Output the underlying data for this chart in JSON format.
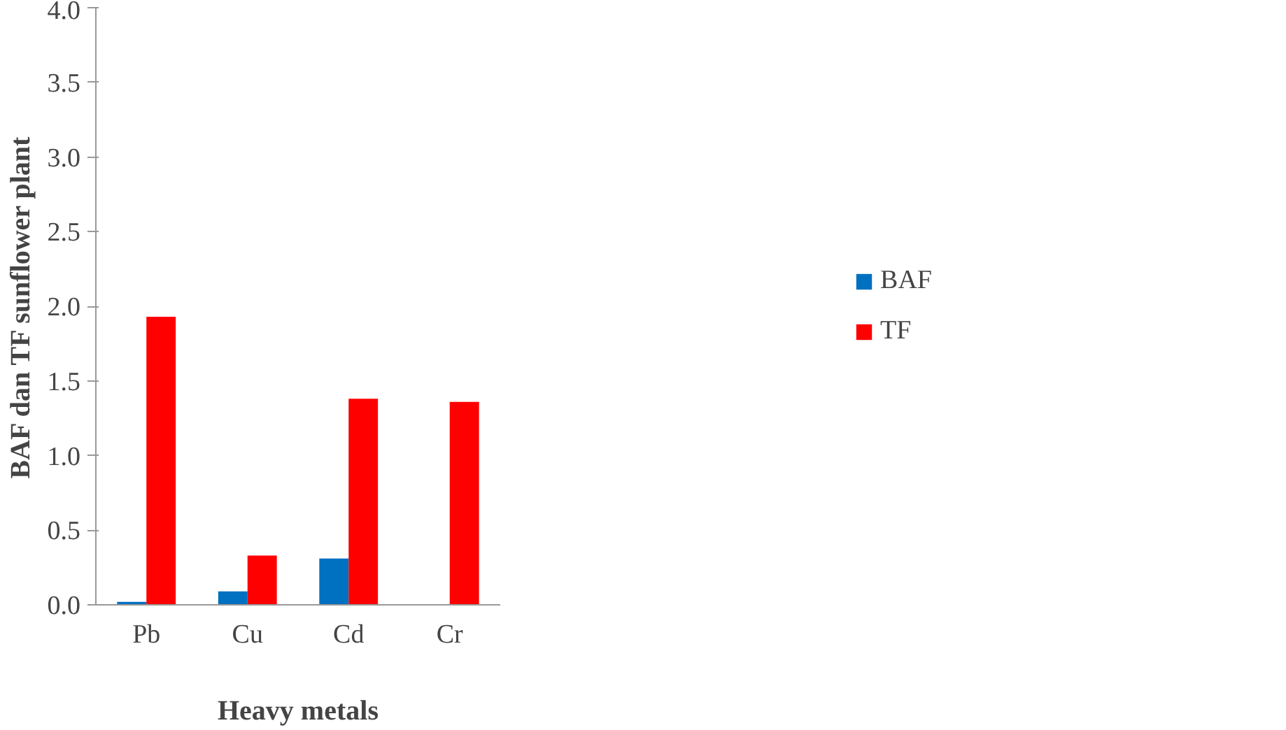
{
  "chart_data": {
    "type": "bar",
    "xlabel": "Heavy metals",
    "ylabel": "BAF dan TF sunflower plant",
    "categories": [
      "Pb",
      "Cu",
      "Cd",
      "Cr"
    ],
    "series": [
      {
        "name": "BAF",
        "color": "#0070c0",
        "values": [
          0.02,
          0.09,
          0.31,
          0
        ]
      },
      {
        "name": "TF",
        "color": "#ff0000",
        "values": [
          1.93,
          0.33,
          1.38,
          1.36
        ]
      }
    ],
    "ylim": [
      0,
      4.0
    ],
    "yticks": [
      {
        "value": 0,
        "label": "0.0"
      },
      {
        "value": 0.5,
        "label": "0.5"
      },
      {
        "value": 1,
        "label": "1.0"
      },
      {
        "value": 1.5,
        "label": "1.5"
      },
      {
        "value": 2,
        "label": "2.0"
      },
      {
        "value": 2.5,
        "label": "2.5"
      },
      {
        "value": 3,
        "label": "3.0"
      },
      {
        "value": 3.5,
        "label": "3.5"
      },
      {
        "value": 4,
        "label": "4.0"
      }
    ],
    "grid": false,
    "legend": "right"
  }
}
